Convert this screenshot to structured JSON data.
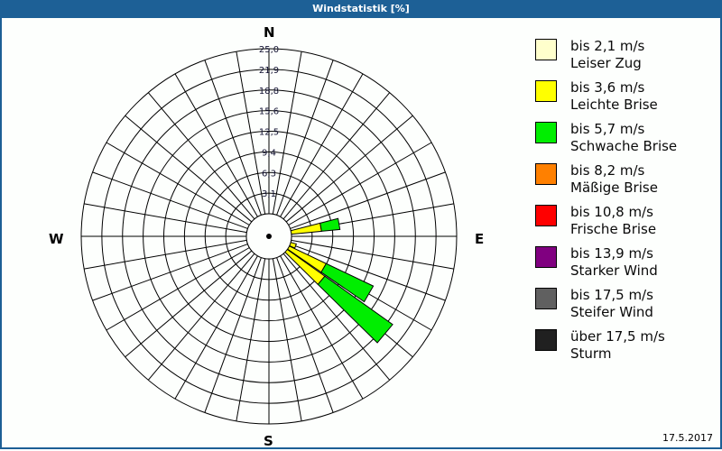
{
  "window": {
    "title": "Windstatistik [%]",
    "date": "17.5.2017"
  },
  "compass": {
    "n": "N",
    "e": "E",
    "s": "S",
    "w": "W"
  },
  "legend": [
    {
      "range": "bis 2,1 m/s",
      "name": "Leiser Zug",
      "color": "#ffffcc"
    },
    {
      "range": "bis 3,6 m/s",
      "name": "Leichte Brise",
      "color": "#ffff00"
    },
    {
      "range": "bis 5,7 m/s",
      "name": "Schwache Brise",
      "color": "#00ee00"
    },
    {
      "range": "bis 8,2 m/s",
      "name": "Mäßige Brise",
      "color": "#ff8000"
    },
    {
      "range": "bis 10,8 m/s",
      "name": "Frische Brise",
      "color": "#ff0000"
    },
    {
      "range": "bis 13,9 m/s",
      "name": "Starker Wind",
      "color": "#800080"
    },
    {
      "range": "bis 17,5 m/s",
      "name": "Steifer Wind",
      "color": "#606060"
    },
    {
      "range": "über 17,5 m/s",
      "name": "Sturm",
      "color": "#202020"
    }
  ],
  "chart_data": {
    "type": "windrose",
    "title": "Windstatistik [%]",
    "unit": "%",
    "rmax": 25.0,
    "ring_ticks": [
      "3,1",
      "6,3",
      "9,4",
      "12,5",
      "15,6",
      "18,8",
      "21,9",
      "25,0"
    ],
    "sector_width_deg": 10,
    "directions_deg": [
      50,
      60,
      70,
      80,
      90,
      100,
      110,
      120,
      130,
      140,
      150,
      160
    ],
    "series": [
      {
        "name": "bis 2,1 m/s",
        "values": [
          0.3,
          0.4,
          0.6,
          0.8,
          0.5,
          0.5,
          0.5,
          0.6,
          0.6,
          0.5,
          1.8,
          2.5
        ]
      },
      {
        "name": "bis 3,6 m/s",
        "values": [
          0.2,
          0.3,
          0.5,
          7.2,
          0.6,
          0.8,
          3.8,
          9.0,
          9.8,
          1.3,
          0.3,
          0.5
        ]
      },
      {
        "name": "bis 5,7 m/s",
        "values": [
          0.0,
          0.0,
          0.0,
          2.8,
          0.4,
          0.3,
          0.0,
          7.9,
          12.6,
          1.6,
          0.0,
          0.0
        ]
      },
      {
        "name": "bis 8,2 m/s",
        "values": [
          0,
          0,
          0,
          0,
          0,
          0,
          0,
          0,
          0,
          0,
          0,
          0
        ]
      },
      {
        "name": "bis 10,8 m/s",
        "values": [
          0,
          0,
          0,
          0,
          0,
          0,
          0,
          0,
          0,
          0,
          0,
          0
        ]
      },
      {
        "name": "bis 13,9 m/s",
        "values": [
          0,
          0,
          0,
          0,
          0,
          0,
          0,
          0,
          0,
          0,
          0,
          0
        ]
      },
      {
        "name": "bis 17,5 m/s",
        "values": [
          0,
          0,
          0,
          0,
          0,
          0,
          0,
          0,
          0,
          0,
          0,
          0
        ]
      },
      {
        "name": "über 17,5 m/s",
        "values": [
          0,
          0,
          0,
          0,
          0,
          0,
          0,
          0,
          0,
          0,
          0,
          0
        ]
      }
    ],
    "legend_position": "right",
    "grid": true
  }
}
